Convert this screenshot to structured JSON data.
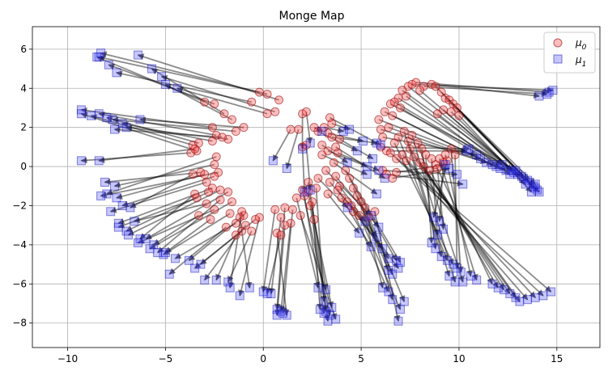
{
  "chart_data": {
    "type": "scatter",
    "title": "Monge Map",
    "xlabel": "",
    "ylabel": "",
    "xlim": [
      -11.8,
      17.2
    ],
    "ylim": [
      -9.25,
      7.15
    ],
    "xticks": [
      -10,
      -5,
      0,
      5,
      10,
      15
    ],
    "yticks": [
      -8,
      -6,
      -4,
      -2,
      0,
      2,
      4,
      6
    ],
    "xtick_labels": [
      "−10",
      "−5",
      "0",
      "5",
      "10",
      "15"
    ],
    "ytick_labels": [
      "−8",
      "−6",
      "−4",
      "−2",
      "0",
      "2",
      "4",
      "6"
    ],
    "grid": true,
    "legend_position": "top-right",
    "series": [
      {
        "name": "μ0",
        "marker": "circle",
        "color": "#ff4444",
        "edge_color": "#8b0000",
        "alpha": 0.35
      },
      {
        "name": "μ1",
        "marker": "square",
        "color": "#4444ff",
        "edge_color": "#0000aa",
        "alpha": 0.3
      }
    ],
    "arrow_color": "#000000",
    "pairs": [
      [
        -0.2,
        3.8,
        -8.4,
        5.6
      ],
      [
        0.2,
        3.7,
        -8.3,
        5.8
      ],
      [
        -3.0,
        3.3,
        -8.5,
        5.6
      ],
      [
        -2.5,
        3.2,
        -7.9,
        5.2
      ],
      [
        0.8,
        3.4,
        -6.4,
        5.7
      ],
      [
        0.6,
        2.8,
        -5.2,
        4.6
      ],
      [
        -2.0,
        2.7,
        -5.7,
        5.0
      ],
      [
        -1.6,
        2.4,
        -5.0,
        4.2
      ],
      [
        -0.6,
        3.3,
        -7.5,
        4.8
      ],
      [
        0.2,
        2.7,
        -4.4,
        4.0
      ],
      [
        -2.6,
        2.0,
        -9.3,
        2.9
      ],
      [
        -2.4,
        1.6,
        -8.4,
        2.7
      ],
      [
        -1.4,
        1.8,
        -7.7,
        2.4
      ],
      [
        -2.6,
        1.3,
        -7.2,
        2.2
      ],
      [
        -1.8,
        1.4,
        -7.0,
        2.0
      ],
      [
        -3.6,
        1.1,
        -8.8,
        2.6
      ],
      [
        -3.4,
        0.8,
        -9.3,
        2.7
      ],
      [
        -1.0,
        2.0,
        -6.3,
        2.4
      ],
      [
        -2.1,
        1.5,
        -7.6,
        1.9
      ],
      [
        -3.3,
        1.2,
        -8.0,
        2.5
      ],
      [
        -3.7,
        0.7,
        -9.3,
        0.3
      ],
      [
        -3.5,
        0.9,
        -8.4,
        0.3
      ],
      [
        -2.4,
        0.5,
        -8.0,
        -1.4
      ],
      [
        -2.5,
        0.1,
        -7.6,
        -1.0
      ],
      [
        -3.2,
        -0.3,
        -8.1,
        -0.8
      ],
      [
        -3.0,
        -0.4,
        -7.5,
        -1.6
      ],
      [
        -2.3,
        -0.3,
        -8.3,
        -1.5
      ],
      [
        -2.5,
        -0.5,
        -7.2,
        -2.0
      ],
      [
        -3.6,
        -0.4,
        -6.8,
        -2.1
      ],
      [
        -2.9,
        -0.8,
        -7.8,
        -2.3
      ],
      [
        -2.6,
        -1.1,
        -7.4,
        -2.9
      ],
      [
        -2.8,
        -1.3,
        -7.0,
        -3.3
      ],
      [
        -3.4,
        -1.6,
        -7.4,
        -3.1
      ],
      [
        -3.5,
        -1.4,
        -6.3,
        -3.7
      ],
      [
        -2.2,
        -1.2,
        -6.9,
        -3.5
      ],
      [
        -2.9,
        -1.9,
        -6.6,
        -2.8
      ],
      [
        -2.5,
        -2.2,
        -6.4,
        -3.9
      ],
      [
        -1.8,
        -1.3,
        -6.0,
        -3.7
      ],
      [
        -2.2,
        -1.7,
        -5.4,
        -4.4
      ],
      [
        -1.6,
        -1.8,
        -5.8,
        -4.2
      ],
      [
        -3.3,
        -2.5,
        -5.6,
        -4.0
      ],
      [
        -1.7,
        -2.4,
        -5.1,
        -4.5
      ],
      [
        -2.7,
        -2.7,
        -5.0,
        -4.4
      ],
      [
        -1.4,
        -2.9,
        -4.5,
        -4.7
      ],
      [
        -1.0,
        -2.5,
        -3.8,
        -4.8
      ],
      [
        -1.9,
        -3.1,
        -4.8,
        -5.5
      ],
      [
        -1.1,
        -3.3,
        -3.5,
        -5.2
      ],
      [
        -0.9,
        -3.0,
        -3.0,
        -5.8
      ],
      [
        -0.4,
        -2.7,
        -3.2,
        -5.0
      ],
      [
        -1.4,
        -3.5,
        -2.4,
        -5.8
      ],
      [
        -0.6,
        -3.3,
        -1.8,
        -5.9
      ],
      [
        -0.2,
        -2.6,
        -1.2,
        -6.6
      ],
      [
        -1.1,
        -2.3,
        -1.7,
        -6.2
      ],
      [
        -1.2,
        -2.6,
        -0.7,
        -6.2
      ],
      [
        0.6,
        -2.2,
        0.0,
        -6.4
      ],
      [
        0.9,
        -2.6,
        0.4,
        -6.5
      ],
      [
        1.1,
        -2.1,
        0.7,
        -7.3
      ],
      [
        0.7,
        -3.4,
        1.2,
        -7.6
      ],
      [
        1.4,
        -2.9,
        0.9,
        -7.4
      ],
      [
        1.5,
        -2.2,
        1.0,
        -7.5
      ],
      [
        1.1,
        -3.0,
        0.7,
        -7.6
      ],
      [
        0.9,
        -3.5,
        0.2,
        -6.5
      ],
      [
        2.0,
        -1.2,
        3.4,
        -7.6
      ],
      [
        2.3,
        -1.3,
        3.5,
        -7.2
      ],
      [
        2.1,
        -1.5,
        3.1,
        -7.5
      ],
      [
        1.9,
        -2.5,
        3.7,
        -7.8
      ],
      [
        2.4,
        -2.0,
        3.2,
        -7.4
      ],
      [
        2.6,
        -2.7,
        3.3,
        -7.9
      ],
      [
        2.5,
        -1.8,
        2.9,
        -7.3
      ],
      [
        2.7,
        -1.1,
        3.1,
        -6.9
      ],
      [
        1.7,
        -1.6,
        2.8,
        -6.2
      ],
      [
        2.3,
        -0.8,
        3.2,
        -6.3
      ],
      [
        2.0,
        1.0,
        2.1,
        -1.3
      ],
      [
        2.2,
        1.1,
        2.4,
        -1.2
      ],
      [
        1.4,
        1.9,
        0.5,
        0.3
      ],
      [
        1.8,
        1.9,
        1.2,
        -0.1
      ],
      [
        2.0,
        2.7,
        2.0,
        0.9
      ],
      [
        2.2,
        2.8,
        2.4,
        1.2
      ],
      [
        2.6,
        2.0,
        3.0,
        1.8
      ],
      [
        3.1,
        2.0,
        4.1,
        1.8
      ],
      [
        3.3,
        1.7,
        5.1,
        1.3
      ],
      [
        2.8,
        1.8,
        4.8,
        0.8
      ],
      [
        3.5,
        1.5,
        5.8,
        1.2
      ],
      [
        3.0,
        1.1,
        4.3,
        0.2
      ],
      [
        3.3,
        0.8,
        5.3,
        0.0
      ],
      [
        3.8,
        0.7,
        5.9,
        -0.2
      ],
      [
        3.0,
        0.6,
        5.3,
        -0.4
      ],
      [
        3.6,
        0.2,
        5.8,
        -1.4
      ],
      [
        3.4,
        2.5,
        6.0,
        1.1
      ],
      [
        3.5,
        2.2,
        4.4,
        1.9
      ],
      [
        3.9,
        1.4,
        5.6,
        0.4
      ],
      [
        3.7,
        1.0,
        6.2,
        -0.6
      ],
      [
        2.8,
        -0.6,
        4.3,
        -2.1
      ],
      [
        3.4,
        -0.8,
        5.2,
        -2.8
      ],
      [
        3.2,
        -0.2,
        5.5,
        -2.5
      ],
      [
        3.7,
        -0.5,
        5.9,
        -3.1
      ],
      [
        3.9,
        -1.0,
        5.8,
        -3.6
      ],
      [
        3.3,
        -1.4,
        4.9,
        -3.4
      ],
      [
        4.0,
        -1.6,
        5.5,
        -4.1
      ],
      [
        3.8,
        -1.2,
        6.1,
        -4.2
      ],
      [
        4.3,
        -1.8,
        6.4,
        -4.7
      ],
      [
        4.6,
        -1.1,
        6.4,
        -5.3
      ],
      [
        4.8,
        -1.5,
        6.6,
        -5.5
      ],
      [
        4.5,
        -2.0,
        6.9,
        -5.2
      ],
      [
        4.4,
        -0.6,
        6.8,
        -4.8
      ],
      [
        4.2,
        -0.2,
        7.0,
        -4.9
      ],
      [
        5.0,
        -1.8,
        6.1,
        -6.2
      ],
      [
        4.6,
        -2.3,
        6.4,
        -6.4
      ],
      [
        5.2,
        -2.1,
        6.6,
        -6.8
      ],
      [
        5.4,
        -2.6,
        7.2,
        -6.9
      ],
      [
        4.9,
        -2.5,
        7.0,
        -7.3
      ],
      [
        5.7,
        -2.3,
        6.9,
        -7.9
      ],
      [
        7.6,
        4.2,
        14.8,
        3.9
      ],
      [
        7.8,
        4.3,
        14.6,
        3.8
      ],
      [
        8.2,
        4.1,
        14.5,
        3.7
      ],
      [
        8.6,
        4.2,
        14.1,
        3.6
      ],
      [
        7.4,
        4.1,
        13.9,
        -1.1
      ],
      [
        8.0,
        3.9,
        14.1,
        -1.3
      ],
      [
        8.8,
        4.1,
        14.0,
        -1.2
      ],
      [
        9.1,
        3.8,
        13.8,
        -1.0
      ],
      [
        9.3,
        3.5,
        13.6,
        -0.8
      ],
      [
        9.5,
        3.4,
        13.9,
        -0.9
      ],
      [
        9.7,
        3.2,
        13.5,
        -0.7
      ],
      [
        9.9,
        3.0,
        13.3,
        -0.6
      ],
      [
        7.1,
        3.9,
        13.2,
        -0.5
      ],
      [
        6.9,
        3.5,
        13.0,
        -0.4
      ],
      [
        6.7,
        3.3,
        12.8,
        -0.3
      ],
      [
        6.5,
        3.2,
        12.9,
        -0.2
      ],
      [
        7.3,
        3.6,
        12.6,
        -0.4
      ],
      [
        7.0,
        3.0,
        12.4,
        -0.2
      ],
      [
        6.6,
        2.6,
        12.1,
        -0.1
      ],
      [
        6.2,
        2.8,
        11.9,
        0.0
      ],
      [
        6.4,
        2.0,
        11.7,
        0.1
      ],
      [
        6.0,
        1.9,
        11.4,
        0.2
      ],
      [
        5.9,
        2.4,
        11.1,
        0.4
      ],
      [
        6.1,
        1.5,
        10.9,
        0.6
      ],
      [
        6.0,
        1.0,
        10.5,
        0.9
      ],
      [
        6.3,
        0.8,
        10.4,
        0.8
      ],
      [
        6.5,
        0.7,
        14.7,
        -6.4
      ],
      [
        6.8,
        0.4,
        14.3,
        -6.6
      ],
      [
        7.1,
        0.6,
        13.9,
        -6.7
      ],
      [
        7.3,
        0.3,
        13.5,
        -6.8
      ],
      [
        7.5,
        0.9,
        13.1,
        -6.9
      ],
      [
        7.7,
        0.5,
        12.9,
        -6.7
      ],
      [
        8.0,
        0.2,
        12.6,
        -6.5
      ],
      [
        8.2,
        0.0,
        12.3,
        -6.3
      ],
      [
        8.5,
        -0.2,
        12.0,
        -6.2
      ],
      [
        8.8,
        0.1,
        11.7,
        -6.0
      ],
      [
        9.0,
        0.4,
        10.9,
        -5.8
      ],
      [
        9.3,
        0.6,
        10.6,
        -5.6
      ],
      [
        9.6,
        0.9,
        10.1,
        -5.4
      ],
      [
        9.8,
        0.6,
        9.9,
        -5.2
      ],
      [
        6.7,
        1.2,
        9.7,
        -5.0
      ],
      [
        6.9,
        1.5,
        9.4,
        -4.8
      ],
      [
        7.2,
        1.8,
        9.1,
        -4.6
      ],
      [
        7.4,
        1.3,
        9.5,
        -5.6
      ],
      [
        7.6,
        1.6,
        9.8,
        -5.9
      ],
      [
        7.9,
        1.2,
        10.2,
        -5.9
      ],
      [
        8.1,
        0.9,
        8.8,
        -4.2
      ],
      [
        8.3,
        0.6,
        8.6,
        -3.9
      ],
      [
        8.6,
        0.4,
        8.9,
        -3.5
      ],
      [
        8.9,
        -0.1,
        9.2,
        -3.2
      ],
      [
        9.2,
        0.2,
        9.0,
        -2.8
      ],
      [
        9.4,
        0.3,
        8.7,
        -2.6
      ],
      [
        6.1,
        -0.2,
        9.9,
        -0.4
      ],
      [
        6.3,
        -0.4,
        10.2,
        -0.9
      ],
      [
        6.6,
        -0.6,
        9.5,
        -0.1
      ],
      [
        6.8,
        -0.3,
        9.3,
        0.1
      ],
      [
        10.0,
        2.6,
        13.7,
        -1.3
      ],
      [
        9.6,
        2.8,
        13.4,
        -0.9
      ],
      [
        9.2,
        2.9,
        12.7,
        -0.2
      ],
      [
        8.9,
        2.7,
        12.2,
        0.1
      ]
    ]
  },
  "legend": {
    "mu0_label": "μ",
    "mu0_sub": "0",
    "mu1_label": "μ",
    "mu1_sub": "1"
  }
}
